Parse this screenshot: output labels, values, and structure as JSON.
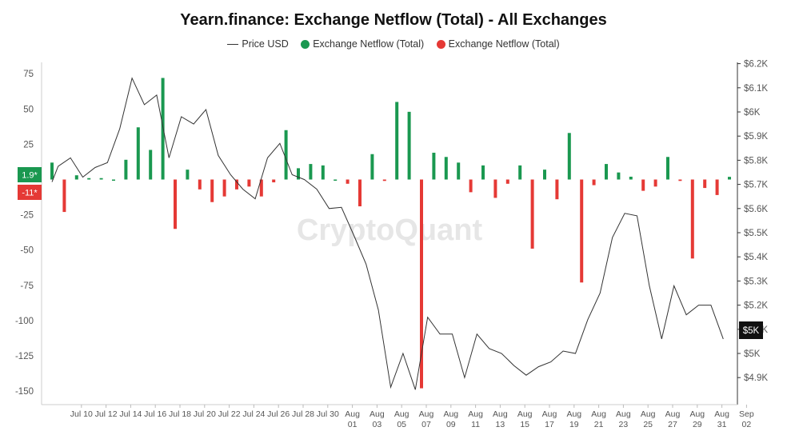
{
  "chart_data": {
    "type": "bar",
    "title": "Yearn.finance: Exchange Netflow (Total) - All Exchanges",
    "legend": [
      {
        "name": "Price USD",
        "kind": "line",
        "color": "#333333"
      },
      {
        "name": "Exchange Netflow (Total)",
        "kind": "dot",
        "color": "#1a9850"
      },
      {
        "name": "Exchange Netflow (Total)",
        "kind": "dot",
        "color": "#e53935"
      }
    ],
    "colors": {
      "positive": "#1a9850",
      "negative": "#e53935",
      "price": "#333333"
    },
    "watermark": "CryptoQuant",
    "y_left": {
      "ticks": [
        75,
        50,
        25,
        -25,
        -50,
        -75,
        -100,
        -125,
        -150
      ],
      "range": [
        -150,
        75
      ],
      "current_pos_label": "1.9*",
      "current_neg_label": "-11*"
    },
    "y_right": {
      "ticks": [
        "$6.2K",
        "$6.1K",
        "$6K",
        "$5.9K",
        "$5.8K",
        "$5.7K",
        "$5.6K",
        "$5.5K",
        "$5.4K",
        "$5.3K",
        "$5.2K",
        "$5.1K",
        "$5K",
        "$4.9K"
      ],
      "tick_values": [
        6200,
        6100,
        6000,
        5900,
        5800,
        5700,
        5600,
        5500,
        5400,
        5300,
        5200,
        5100,
        5000,
        4900
      ],
      "range": [
        4900,
        6200
      ],
      "current_label": "$5K"
    },
    "x_ticks": [
      {
        "day": 2,
        "l1": "Jul 10",
        "l2": ""
      },
      {
        "day": 4,
        "l1": "Jul 12",
        "l2": ""
      },
      {
        "day": 6,
        "l1": "Jul 14",
        "l2": ""
      },
      {
        "day": 8,
        "l1": "Jul 16",
        "l2": ""
      },
      {
        "day": 10,
        "l1": "Jul 18",
        "l2": ""
      },
      {
        "day": 12,
        "l1": "Jul 20",
        "l2": ""
      },
      {
        "day": 14,
        "l1": "Jul 22",
        "l2": ""
      },
      {
        "day": 16,
        "l1": "Jul 24",
        "l2": ""
      },
      {
        "day": 18,
        "l1": "Jul 26",
        "l2": ""
      },
      {
        "day": 20,
        "l1": "Jul 28",
        "l2": ""
      },
      {
        "day": 22,
        "l1": "Jul 30",
        "l2": ""
      },
      {
        "day": 24,
        "l1": "Aug",
        "l2": "01"
      },
      {
        "day": 26,
        "l1": "Aug",
        "l2": "03"
      },
      {
        "day": 28,
        "l1": "Aug",
        "l2": "05"
      },
      {
        "day": 30,
        "l1": "Aug",
        "l2": "07"
      },
      {
        "day": 32,
        "l1": "Aug",
        "l2": "09"
      },
      {
        "day": 34,
        "l1": "Aug",
        "l2": "11"
      },
      {
        "day": 36,
        "l1": "Aug",
        "l2": "13"
      },
      {
        "day": 38,
        "l1": "Aug",
        "l2": "15"
      },
      {
        "day": 40,
        "l1": "Aug",
        "l2": "17"
      },
      {
        "day": 42,
        "l1": "Aug",
        "l2": "19"
      },
      {
        "day": 44,
        "l1": "Aug",
        "l2": "21"
      },
      {
        "day": 46,
        "l1": "Aug",
        "l2": "23"
      },
      {
        "day": 48,
        "l1": "Aug",
        "l2": "25"
      },
      {
        "day": 50,
        "l1": "Aug",
        "l2": "27"
      },
      {
        "day": 52,
        "l1": "Aug",
        "l2": "29"
      },
      {
        "day": 54,
        "l1": "Aug",
        "l2": "31"
      },
      {
        "day": 56,
        "l1": "Sep",
        "l2": "02"
      }
    ],
    "netflow": [
      {
        "day": 0,
        "value": 12
      },
      {
        "day": 1,
        "value": -23
      },
      {
        "day": 2,
        "value": 3
      },
      {
        "day": 3,
        "value": 1
      },
      {
        "day": 4,
        "value": 1
      },
      {
        "day": 5,
        "value": 0
      },
      {
        "day": 6,
        "value": 14
      },
      {
        "day": 7,
        "value": 37
      },
      {
        "day": 8,
        "value": 21
      },
      {
        "day": 9,
        "value": 72
      },
      {
        "day": 10,
        "value": -35
      },
      {
        "day": 11,
        "value": 7
      },
      {
        "day": 12,
        "value": -7
      },
      {
        "day": 13,
        "value": -16
      },
      {
        "day": 14,
        "value": -12
      },
      {
        "day": 15,
        "value": -7
      },
      {
        "day": 16,
        "value": -5
      },
      {
        "day": 17,
        "value": -12
      },
      {
        "day": 18,
        "value": -2
      },
      {
        "day": 19,
        "value": 35
      },
      {
        "day": 20,
        "value": 8
      },
      {
        "day": 21,
        "value": 11
      },
      {
        "day": 22,
        "value": 10
      },
      {
        "day": 23,
        "value": 0
      },
      {
        "day": 24,
        "value": -3
      },
      {
        "day": 25,
        "value": -19
      },
      {
        "day": 26,
        "value": 18
      },
      {
        "day": 27,
        "value": -1
      },
      {
        "day": 28,
        "value": 55
      },
      {
        "day": 29,
        "value": 48
      },
      {
        "day": 30,
        "value": -148
      },
      {
        "day": 31,
        "value": 19
      },
      {
        "day": 32,
        "value": 16
      },
      {
        "day": 33,
        "value": 12
      },
      {
        "day": 34,
        "value": -9
      },
      {
        "day": 35,
        "value": 10
      },
      {
        "day": 36,
        "value": -13
      },
      {
        "day": 37,
        "value": -3
      },
      {
        "day": 38,
        "value": 10
      },
      {
        "day": 39,
        "value": -49
      },
      {
        "day": 40,
        "value": 7
      },
      {
        "day": 41,
        "value": -14
      },
      {
        "day": 42,
        "value": 33
      },
      {
        "day": 43,
        "value": -73
      },
      {
        "day": 44,
        "value": -4
      },
      {
        "day": 45,
        "value": 11
      },
      {
        "day": 46,
        "value": 5
      },
      {
        "day": 47,
        "value": 2
      },
      {
        "day": 48,
        "value": -8
      },
      {
        "day": 49,
        "value": -5
      },
      {
        "day": 50,
        "value": 16
      },
      {
        "day": 51,
        "value": -1
      },
      {
        "day": 52,
        "value": -56
      },
      {
        "day": 53,
        "value": -6
      },
      {
        "day": 54,
        "value": -11
      },
      {
        "day": 55,
        "value": 1.9
      }
    ],
    "price_usd": [
      {
        "day": 0,
        "value": 5710
      },
      {
        "day": 0.5,
        "value": 5775
      },
      {
        "day": 1.5,
        "value": 5810
      },
      {
        "day": 2.5,
        "value": 5730
      },
      {
        "day": 3.5,
        "value": 5770
      },
      {
        "day": 4.5,
        "value": 5790
      },
      {
        "day": 5.5,
        "value": 5930
      },
      {
        "day": 6.5,
        "value": 6140
      },
      {
        "day": 7.5,
        "value": 6030
      },
      {
        "day": 8.5,
        "value": 6070
      },
      {
        "day": 9.5,
        "value": 5810
      },
      {
        "day": 10.5,
        "value": 5980
      },
      {
        "day": 11.5,
        "value": 5950
      },
      {
        "day": 12.5,
        "value": 6010
      },
      {
        "day": 13.5,
        "value": 5820
      },
      {
        "day": 14.5,
        "value": 5740
      },
      {
        "day": 15.5,
        "value": 5680
      },
      {
        "day": 16.5,
        "value": 5640
      },
      {
        "day": 17.5,
        "value": 5810
      },
      {
        "day": 18.5,
        "value": 5870
      },
      {
        "day": 19.5,
        "value": 5740
      },
      {
        "day": 20.5,
        "value": 5720
      },
      {
        "day": 21.5,
        "value": 5680
      },
      {
        "day": 22.5,
        "value": 5600
      },
      {
        "day": 23.5,
        "value": 5605
      },
      {
        "day": 24.5,
        "value": 5490
      },
      {
        "day": 25.5,
        "value": 5370
      },
      {
        "day": 26.5,
        "value": 5180
      },
      {
        "day": 27.5,
        "value": 4860
      },
      {
        "day": 28.5,
        "value": 5000
      },
      {
        "day": 29.5,
        "value": 4850
      },
      {
        "day": 30.5,
        "value": 5150
      },
      {
        "day": 31.5,
        "value": 5080
      },
      {
        "day": 32.5,
        "value": 5080
      },
      {
        "day": 33.5,
        "value": 4900
      },
      {
        "day": 34.5,
        "value": 5080
      },
      {
        "day": 35.5,
        "value": 5020
      },
      {
        "day": 36.5,
        "value": 5000
      },
      {
        "day": 37.5,
        "value": 4950
      },
      {
        "day": 38.5,
        "value": 4910
      },
      {
        "day": 39.5,
        "value": 4945
      },
      {
        "day": 40.5,
        "value": 4965
      },
      {
        "day": 41.5,
        "value": 5010
      },
      {
        "day": 42.5,
        "value": 5000
      },
      {
        "day": 43.5,
        "value": 5140
      },
      {
        "day": 44.5,
        "value": 5250
      },
      {
        "day": 45.5,
        "value": 5480
      },
      {
        "day": 46.5,
        "value": 5580
      },
      {
        "day": 47.5,
        "value": 5570
      },
      {
        "day": 48.5,
        "value": 5280
      },
      {
        "day": 49.5,
        "value": 5060
      },
      {
        "day": 50.5,
        "value": 5280
      },
      {
        "day": 51.5,
        "value": 5160
      },
      {
        "day": 52.5,
        "value": 5200
      },
      {
        "day": 53.5,
        "value": 5200
      },
      {
        "day": 54.5,
        "value": 5060
      }
    ]
  }
}
